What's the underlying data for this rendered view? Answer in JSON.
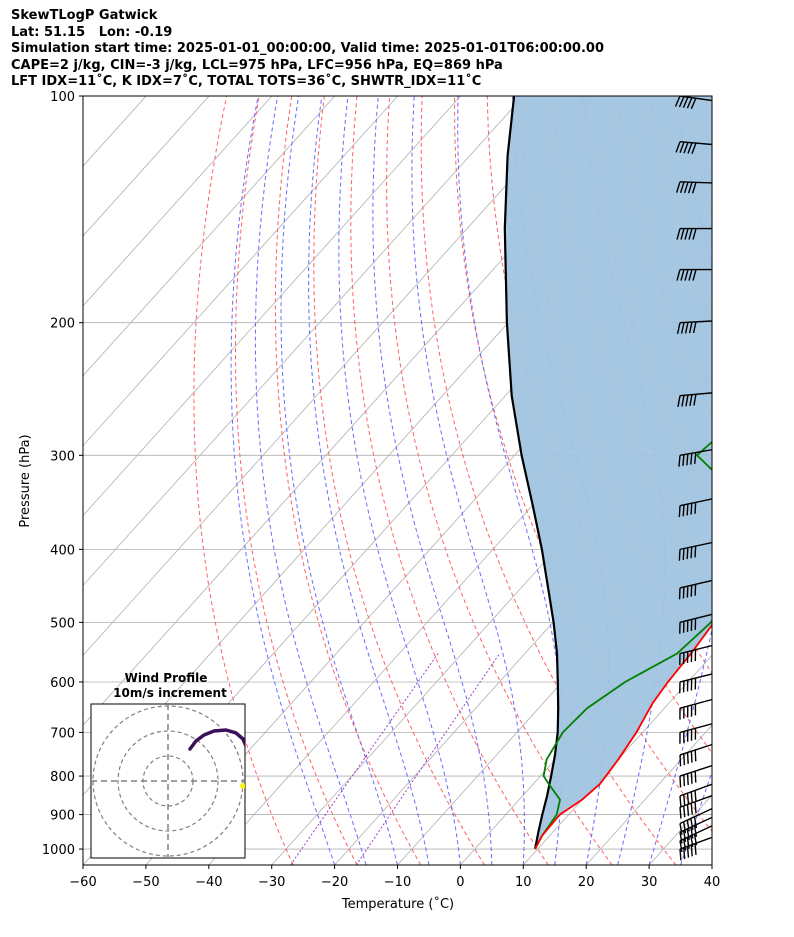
{
  "header": {
    "lines": [
      "SkewTLogP Gatwick",
      "Lat: 51.15   Lon: -0.19",
      "Simulation start time: 2025-01-01_00:00:00, Valid time: 2025-01-01T06:00:00.00",
      "CAPE=2 j/kg, CIN=-3 j/kg, LCL=975 hPa, LFC=956 hPa, EQ=869 hPa",
      "LFT IDX=11˚C, K IDX=7˚C, TOTAL TOTS=36˚C, SHWTR_IDX=11˚C"
    ]
  },
  "chart_data": {
    "type": "skewt",
    "xlabel": "Temperature (˚C)",
    "ylabel": "Pressure (hPa)",
    "xlim": [
      -60,
      40
    ],
    "ylim_hpa": [
      1050,
      100
    ],
    "x_ticks": [
      "−60",
      "−50",
      "−40",
      "−30",
      "−20",
      "−10",
      "0",
      "10",
      "20",
      "30",
      "40"
    ],
    "y_ticks": [
      1000,
      900,
      800,
      700,
      600,
      500,
      400,
      300,
      200,
      100
    ],
    "pressure_gridlines": [
      1000,
      900,
      800,
      700,
      600,
      500,
      400,
      300,
      200,
      100
    ],
    "grid": true,
    "colors": {
      "temperature": "#ff0000",
      "dewpoint": "#008000",
      "parcel": "#000000",
      "fill": "#a0c4e0",
      "dry_adiabat": "#ff6060",
      "moist_adiabat": "#6a6aff",
      "isotherm": "#b0b0b0",
      "mixing_ratio": "#9a40c8"
    },
    "temperature": [
      {
        "p": 1000,
        "t": 9.6
      },
      {
        "p": 960,
        "t": 8.8
      },
      {
        "p": 900,
        "t": 8.6
      },
      {
        "p": 860,
        "t": 10.0
      },
      {
        "p": 820,
        "t": 10.6
      },
      {
        "p": 800,
        "t": 10.4
      },
      {
        "p": 760,
        "t": 10.0
      },
      {
        "p": 700,
        "t": 9.0
      },
      {
        "p": 640,
        "t": 7.4
      },
      {
        "p": 600,
        "t": 6.8
      },
      {
        "p": 550,
        "t": 6.4
      },
      {
        "p": 500,
        "t": 5.6
      },
      {
        "p": 450,
        "t": 3.6
      },
      {
        "p": 400,
        "t": 0.8
      },
      {
        "p": 350,
        "t": -3.8
      },
      {
        "p": 300,
        "t": -9.2
      },
      {
        "p": 250,
        "t": -16.2
      },
      {
        "p": 200,
        "t": -23.8
      },
      {
        "p": 185,
        "t": -26.0
      },
      {
        "p": 170,
        "t": -25.2
      },
      {
        "p": 150,
        "t": -22.8
      },
      {
        "p": 130,
        "t": -18.5
      },
      {
        "p": 115,
        "t": -14.0
      },
      {
        "p": 100,
        "t": -8.8
      }
    ],
    "dewpoint": [
      {
        "p": 1000,
        "t": 9.6
      },
      {
        "p": 960,
        "t": 8.8
      },
      {
        "p": 900,
        "t": 8.1
      },
      {
        "p": 860,
        "t": 6.5
      },
      {
        "p": 820,
        "t": 2.5
      },
      {
        "p": 800,
        "t": 0.5
      },
      {
        "p": 760,
        "t": -1.4
      },
      {
        "p": 700,
        "t": -2.7
      },
      {
        "p": 650,
        "t": -2.3
      },
      {
        "p": 600,
        "t": 0.0
      },
      {
        "p": 550,
        "t": 4.2
      },
      {
        "p": 500,
        "t": 5.1
      },
      {
        "p": 450,
        "t": 3.4
      },
      {
        "p": 400,
        "t": -0.5
      },
      {
        "p": 350,
        "t": -7.0
      },
      {
        "p": 320,
        "t": -14.5
      },
      {
        "p": 300,
        "t": -21.0
      },
      {
        "p": 275,
        "t": -20.0
      },
      {
        "p": 250,
        "t": -20.2
      },
      {
        "p": 200,
        "t": -26.8
      },
      {
        "p": 185,
        "t": -28.0
      },
      {
        "p": 170,
        "t": -26.8
      },
      {
        "p": 150,
        "t": -23.5
      },
      {
        "p": 130,
        "t": -19.5
      },
      {
        "p": 110,
        "t": -14.5
      },
      {
        "p": 100,
        "t": -13.5
      }
    ],
    "parcel": [
      {
        "p": 1000,
        "t": 9.6
      },
      {
        "p": 950,
        "t": 7.7
      },
      {
        "p": 900,
        "t": 5.8
      },
      {
        "p": 850,
        "t": 3.9
      },
      {
        "p": 800,
        "t": 1.7
      },
      {
        "p": 750,
        "t": -0.7
      },
      {
        "p": 700,
        "t": -3.5
      },
      {
        "p": 650,
        "t": -6.9
      },
      {
        "p": 600,
        "t": -10.7
      },
      {
        "p": 550,
        "t": -14.9
      },
      {
        "p": 500,
        "t": -19.9
      },
      {
        "p": 450,
        "t": -25.7
      },
      {
        "p": 400,
        "t": -32.2
      },
      {
        "p": 350,
        "t": -39.9
      },
      {
        "p": 300,
        "t": -48.9
      },
      {
        "p": 250,
        "t": -59.0
      },
      {
        "p": 200,
        "t": -70.2
      },
      {
        "p": 150,
        "t": -84.0
      },
      {
        "p": 120,
        "t": -94.0
      },
      {
        "p": 100,
        "t": -101.5
      }
    ],
    "wind_barbs": [
      {
        "p": 1000,
        "speed_kt": 45,
        "dir_deg": 250
      },
      {
        "p": 975,
        "speed_kt": 45,
        "dir_deg": 245
      },
      {
        "p": 950,
        "speed_kt": 45,
        "dir_deg": 245
      },
      {
        "p": 925,
        "speed_kt": 45,
        "dir_deg": 245
      },
      {
        "p": 880,
        "speed_kt": 45,
        "dir_deg": 250
      },
      {
        "p": 850,
        "speed_kt": 45,
        "dir_deg": 250
      },
      {
        "p": 800,
        "speed_kt": 45,
        "dir_deg": 252
      },
      {
        "p": 750,
        "speed_kt": 45,
        "dir_deg": 252
      },
      {
        "p": 700,
        "speed_kt": 45,
        "dir_deg": 255
      },
      {
        "p": 650,
        "speed_kt": 45,
        "dir_deg": 255
      },
      {
        "p": 600,
        "speed_kt": 45,
        "dir_deg": 256
      },
      {
        "p": 550,
        "speed_kt": 45,
        "dir_deg": 256
      },
      {
        "p": 500,
        "speed_kt": 45,
        "dir_deg": 256
      },
      {
        "p": 450,
        "speed_kt": 45,
        "dir_deg": 257
      },
      {
        "p": 400,
        "speed_kt": 45,
        "dir_deg": 258
      },
      {
        "p": 350,
        "speed_kt": 45,
        "dir_deg": 258
      },
      {
        "p": 300,
        "speed_kt": 45,
        "dir_deg": 260
      },
      {
        "p": 250,
        "speed_kt": 45,
        "dir_deg": 265
      },
      {
        "p": 200,
        "speed_kt": 45,
        "dir_deg": 267
      },
      {
        "p": 170,
        "speed_kt": 45,
        "dir_deg": 270
      },
      {
        "p": 150,
        "speed_kt": 45,
        "dir_deg": 270
      },
      {
        "p": 130,
        "speed_kt": 45,
        "dir_deg": 272
      },
      {
        "p": 115,
        "speed_kt": 45,
        "dir_deg": 275
      },
      {
        "p": 100,
        "speed_kt": 45,
        "dir_deg": 278
      }
    ],
    "hodograph": {
      "title": "Wind Profile",
      "subtitle": "10m/s increment",
      "rings_ms": [
        10,
        20,
        30
      ],
      "trace_color": "#3c0f5a",
      "marker_color": "#f5f518"
    }
  }
}
